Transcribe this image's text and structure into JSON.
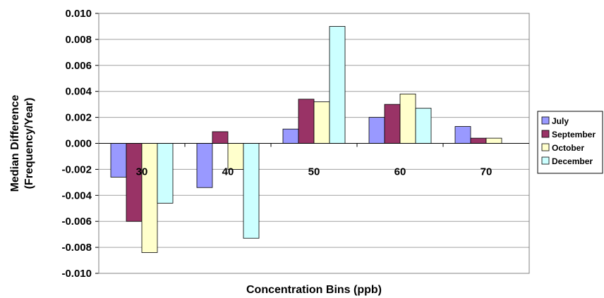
{
  "chart_data": {
    "type": "bar",
    "title": "",
    "xlabel": "Concentration Bins (ppb)",
    "ylabel": "Median Difference",
    "ylabel_line2": "(Frequency/Year)",
    "ylim": [
      -0.01,
      0.01
    ],
    "yticks": [
      "0.010",
      "0.008",
      "0.006",
      "0.004",
      "0.002",
      "0.000",
      "-0.002",
      "-0.004",
      "-0.006",
      "-0.008",
      "-0.010"
    ],
    "categories": [
      "30",
      "40",
      "50",
      "60",
      "70"
    ],
    "grid": true,
    "legend_position": "right",
    "series": [
      {
        "name": "July",
        "color": "#9999ff",
        "values": [
          -0.0026,
          -0.0034,
          0.0011,
          0.002,
          0.0013
        ]
      },
      {
        "name": "September",
        "color": "#993366",
        "values": [
          -0.006,
          0.0009,
          0.0034,
          0.003,
          0.0004
        ]
      },
      {
        "name": "October",
        "color": "#ffffcc",
        "values": [
          -0.0084,
          -0.002,
          0.0032,
          0.0038,
          0.0004
        ]
      },
      {
        "name": "December",
        "color": "#ccffff",
        "values": [
          -0.0046,
          -0.0073,
          0.009,
          0.0027,
          0.0
        ]
      }
    ]
  }
}
